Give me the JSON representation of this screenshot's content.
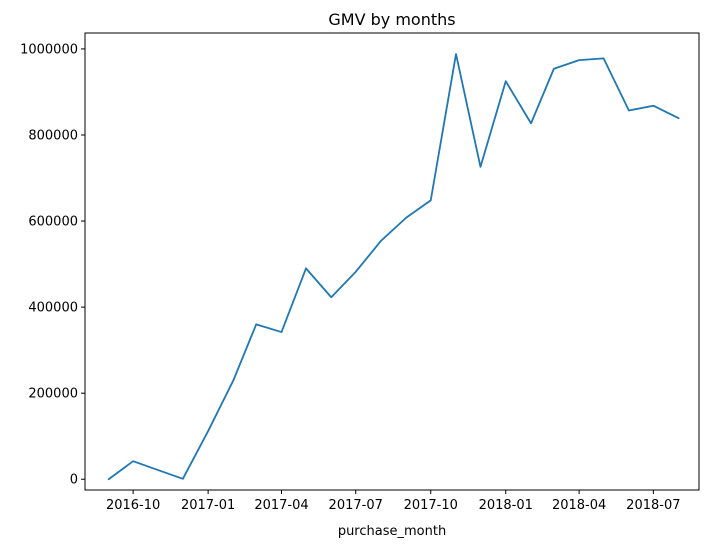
{
  "chart_data": {
    "type": "line",
    "title": "GMV by months",
    "xlabel": "purchase_month",
    "ylabel": "",
    "x_tick_labels": [
      "2016-10",
      "2017-01",
      "2017-04",
      "2017-07",
      "2017-10",
      "2018-01",
      "2018-04",
      "2018-07"
    ],
    "y_tick_labels": [
      "0",
      "200000",
      "400000",
      "600000",
      "800000",
      "1000000"
    ],
    "y_ticks": [
      0,
      200000,
      400000,
      600000,
      800000,
      1000000
    ],
    "ylim": [
      -25000,
      1037000
    ],
    "xlim": [
      "2016-08-03",
      "2018-08-26"
    ],
    "grid": false,
    "series": [
      {
        "name": "",
        "color": "#1f77b4",
        "x": [
          "2016-09",
          "2016-10",
          "2016-11",
          "2016-12",
          "2017-01",
          "2017-02",
          "2017-03",
          "2017-04",
          "2017-05",
          "2017-06",
          "2017-07",
          "2017-08",
          "2017-09",
          "2017-10",
          "2017-11",
          "2017-12",
          "2018-01",
          "2018-02",
          "2018-03",
          "2018-04",
          "2018-05",
          "2018-06",
          "2018-07",
          "2018-08"
        ],
        "values": [
          0,
          42000,
          21000,
          1000,
          112000,
          230000,
          360000,
          342000,
          490000,
          423000,
          482000,
          554000,
          608000,
          648000,
          988000,
          726000,
          925000,
          827000,
          954000,
          974000,
          978000,
          857000,
          868000,
          839000
        ]
      }
    ]
  }
}
